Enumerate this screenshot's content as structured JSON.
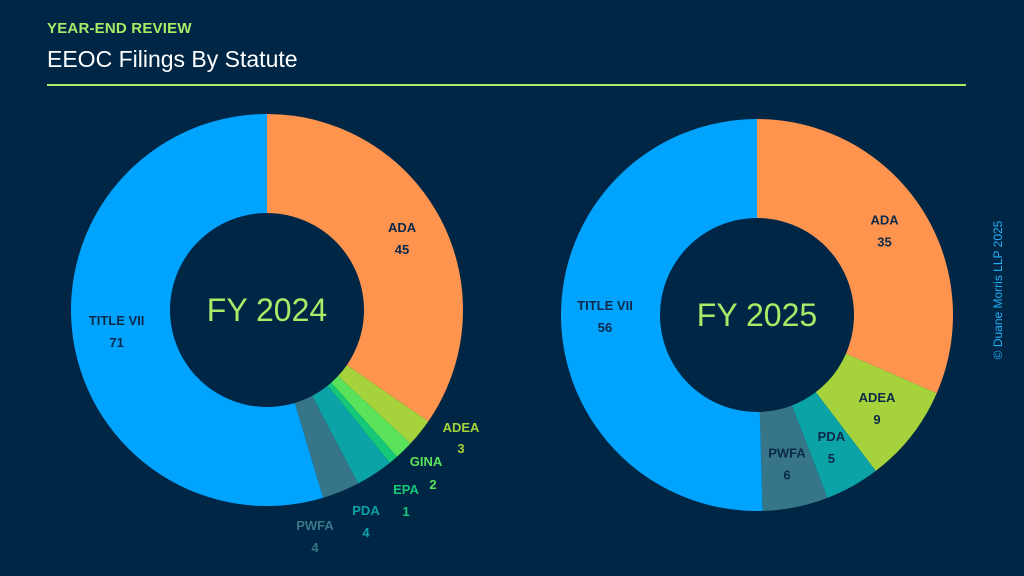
{
  "header": {
    "eyebrow": "YEAR-END REVIEW",
    "title": "EEOC Filings By Statute"
  },
  "copyright": "© Duane Morris LLP 2025",
  "colors": {
    "background": "#002646",
    "accent": "#a6ec66",
    "ADA": "#ff944f",
    "ADEA": "#a6d23c",
    "GINA": "#59e25a",
    "EPA": "#14c878",
    "PDA": "#0ba3a6",
    "PWFA": "#367688",
    "TITLE VII": "#00a4ff"
  },
  "chart_data": [
    {
      "type": "pie",
      "variant": "donut",
      "center_label": "FY 2024",
      "categories": [
        "ADA",
        "ADEA",
        "GINA",
        "EPA",
        "PDA",
        "PWFA",
        "TITLE VII"
      ],
      "values": [
        45,
        3,
        2,
        1,
        4,
        4,
        71
      ],
      "label_colors": {
        "ADA": "#0b2a4a",
        "ADEA": "#a6d23c",
        "GINA": "#59e25a",
        "EPA": "#14c878",
        "PDA": "#0ba3a6",
        "PWFA": "#367688",
        "TITLE VII": "#0b2a4a"
      },
      "label_outside": [
        "ADEA",
        "GINA",
        "EPA",
        "PDA",
        "PWFA"
      ]
    },
    {
      "type": "pie",
      "variant": "donut",
      "center_label": "FY 2025",
      "categories": [
        "ADA",
        "ADEA",
        "PDA",
        "PWFA",
        "TITLE VII"
      ],
      "values": [
        35,
        9,
        5,
        6,
        56
      ],
      "label_colors": {
        "ADA": "#0b2a4a",
        "ADEA": "#0b2a4a",
        "PDA": "#0b2a4a",
        "PWFA": "#0b2a4a",
        "TITLE VII": "#0b2a4a"
      },
      "label_outside": []
    }
  ]
}
